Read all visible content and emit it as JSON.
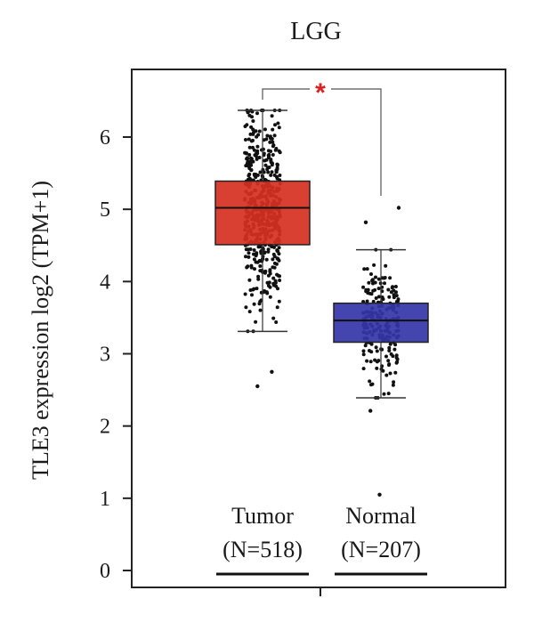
{
  "chart_data": {
    "type": "box",
    "title": "LGG",
    "ylabel": "TLE3 expression log2 (TPM+1)",
    "xlabel": "",
    "ylim": [
      -0.2,
      6.9
    ],
    "yticks": [
      0,
      1,
      2,
      3,
      4,
      5,
      6
    ],
    "groups": [
      {
        "name": "Tumor",
        "count_label": "(N=518)",
        "color": "#d7301f",
        "q1": 4.51,
        "median": 5.02,
        "q3": 5.39,
        "whisker_low": 3.31,
        "whisker_high": 6.37,
        "outliers": [
          2.75,
          2.55
        ],
        "n_points": 518
      },
      {
        "name": "Normal",
        "count_label": "(N=207)",
        "color": "#3535a8",
        "q1": 3.16,
        "median": 3.46,
        "q3": 3.7,
        "whisker_low": 2.39,
        "whisker_high": 4.44,
        "outliers": [
          5.02,
          4.82,
          2.21,
          1.05
        ],
        "n_points": 207
      }
    ],
    "significance": "*",
    "significance_color": "#e02020"
  }
}
